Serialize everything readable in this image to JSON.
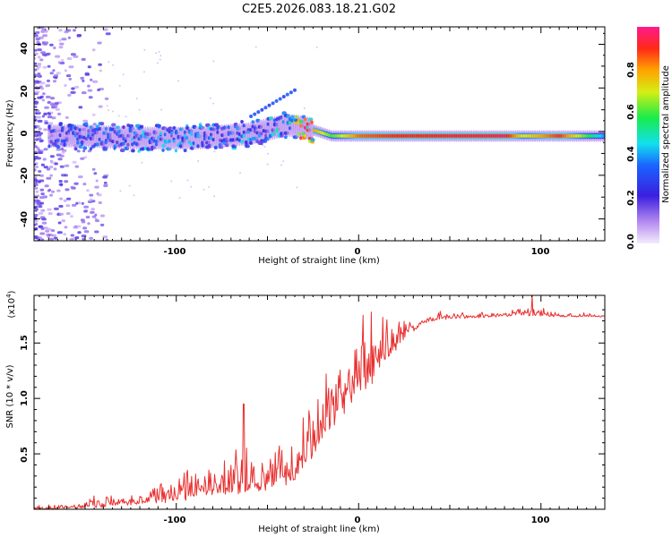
{
  "figure_title": "C2E5.2026.083.18.21.G02",
  "colors": {
    "snr_line": "#e8302f",
    "axis": "#000000",
    "background": "#ffffff"
  },
  "chart_data": [
    {
      "type": "heatmap",
      "name": "spectrogram",
      "xlabel": "Height of straight line (km)",
      "ylabel": "Frequency (Hz)",
      "xlim": [
        -178,
        135
      ],
      "ylim": [
        -50,
        48
      ],
      "xticks": [
        -100,
        0,
        100
      ],
      "yticks": [
        -40,
        -20,
        0,
        20,
        40
      ],
      "colorbar": {
        "label": "Normalized spectral amplitude",
        "range": [
          0,
          1
        ],
        "ticks": [
          0.0,
          0.2,
          0.4,
          0.6,
          0.8
        ]
      },
      "ridge": [
        {
          "x": -170,
          "f": -2,
          "amp": 0.3
        },
        {
          "x": -150,
          "f": -2,
          "amp": 0.35
        },
        {
          "x": -120,
          "f": -3,
          "amp": 0.4
        },
        {
          "x": -90,
          "f": -3,
          "amp": 0.4
        },
        {
          "x": -60,
          "f": -1,
          "amp": 0.4
        },
        {
          "x": -40,
          "f": 3,
          "amp": 0.45
        },
        {
          "x": -30,
          "f": 2,
          "amp": 0.9
        },
        {
          "x": -15,
          "f": -2,
          "amp": 0.6
        },
        {
          "x": 0,
          "f": -2,
          "amp": 0.85
        },
        {
          "x": 20,
          "f": -2,
          "amp": 0.9
        },
        {
          "x": 80,
          "f": -2,
          "amp": 0.95
        },
        {
          "x": 90,
          "f": -2,
          "amp": 0.7
        },
        {
          "x": 110,
          "f": -2,
          "amp": 0.9
        },
        {
          "x": 135,
          "f": -2,
          "amp": 0.4
        }
      ]
    },
    {
      "type": "line",
      "name": "snr",
      "xlabel": "Height of straight line (km)",
      "ylabel": "SNR (10 * v/v)",
      "y_scale_label": "(x10",
      "y_scale_exp": "4",
      "xlim": [
        -178,
        135
      ],
      "ylim": [
        0.0,
        1.93
      ],
      "xticks": [
        -100,
        0,
        100
      ],
      "yticks": [
        0.5,
        1.0,
        1.5
      ],
      "ytick_labels": [
        "0.5",
        "1.0",
        "1.5"
      ],
      "envelope": {
        "x": [
          -178,
          -160,
          -140,
          -120,
          -100,
          -80,
          -65,
          -50,
          -35,
          -25,
          -15,
          -5,
          5,
          15,
          25,
          35,
          45,
          60,
          80,
          90,
          100,
          110,
          135
        ],
        "base": [
          0.0,
          0.01,
          0.03,
          0.06,
          0.1,
          0.14,
          0.18,
          0.22,
          0.3,
          0.55,
          0.8,
          1.0,
          1.15,
          1.35,
          1.55,
          1.68,
          1.72,
          1.73,
          1.74,
          1.76,
          1.75,
          1.74,
          1.74
        ],
        "amp": [
          0.02,
          0.03,
          0.06,
          0.1,
          0.14,
          0.18,
          0.25,
          0.22,
          0.25,
          0.35,
          0.4,
          0.4,
          0.35,
          0.28,
          0.12,
          0.05,
          0.04,
          0.03,
          0.03,
          0.06,
          0.05,
          0.02,
          0.02
        ]
      },
      "peaks": [
        {
          "x": -63,
          "y": 0.95
        },
        {
          "x": 7,
          "y": 1.78
        },
        {
          "x": 15,
          "y": 1.59
        },
        {
          "x": 95,
          "y": 1.93
        }
      ]
    }
  ]
}
